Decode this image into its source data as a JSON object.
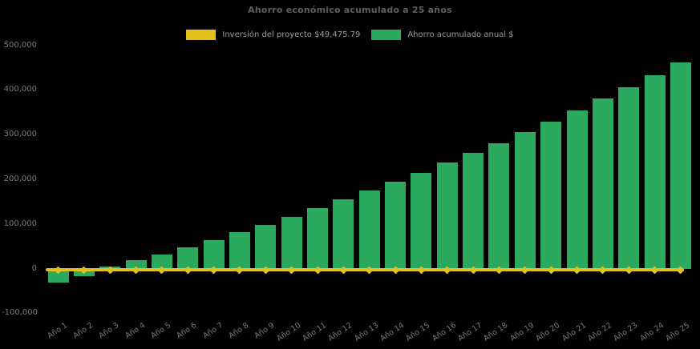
{
  "title": "Ahorro económico acumulado a 25 años",
  "colors": {
    "background": "#000000",
    "bar_green": "#2ba95e",
    "line_gold": "#e4c01d",
    "title_text": "#5f5f5f",
    "legend_text": "#9b9b9b",
    "tick_text": "#7a7a7a"
  },
  "legend": {
    "items": [
      {
        "label": "Inversión del proyecto $49,475.79",
        "color": "#e4c01d",
        "marker": "line-swatch"
      },
      {
        "label": "Ahorro acumulado anual $",
        "color": "#2ba95e",
        "marker": "bar-swatch"
      }
    ]
  },
  "chart_data": {
    "type": "bar",
    "title": "Ahorro económico acumulado a 25 años",
    "categories": [
      "Año 1",
      "Año 2",
      "Año 3",
      "Año 4",
      "Año 5",
      "Año 6",
      "Año 7",
      "Año 8",
      "Año 9",
      "Año 10",
      "Año 11",
      "Año 12",
      "Año 13",
      "Año 14",
      "Año 15",
      "Año 16",
      "Año 17",
      "Año 18",
      "Año 19",
      "Año 20",
      "Año 21",
      "Año 22",
      "Año 23",
      "Año 24",
      "Año 25"
    ],
    "series": [
      {
        "name": "Ahorro acumulado anual $",
        "type": "bar",
        "color": "#2ba95e",
        "values": [
          -29000,
          -15000,
          5000,
          19500,
          32500,
          48500,
          65000,
          82000,
          99000,
          116500,
          137000,
          155500,
          176000,
          194500,
          215500,
          238500,
          260000,
          282000,
          306000,
          330000,
          354000,
          381000,
          406000,
          434000,
          463000
        ]
      },
      {
        "name": "Inversión del proyecto $49,475.79",
        "type": "line",
        "color": "#e4c01d",
        "marker": "diamond",
        "constant_value": -2000,
        "investment_amount_label": "$49,475.79"
      }
    ],
    "xlabel": "",
    "ylabel": "",
    "ylim": [
      -100000,
      500000
    ],
    "yticks": [
      500000,
      400000,
      300000,
      200000,
      100000,
      0,
      -100000
    ],
    "grid": false,
    "legend_position": "top"
  }
}
